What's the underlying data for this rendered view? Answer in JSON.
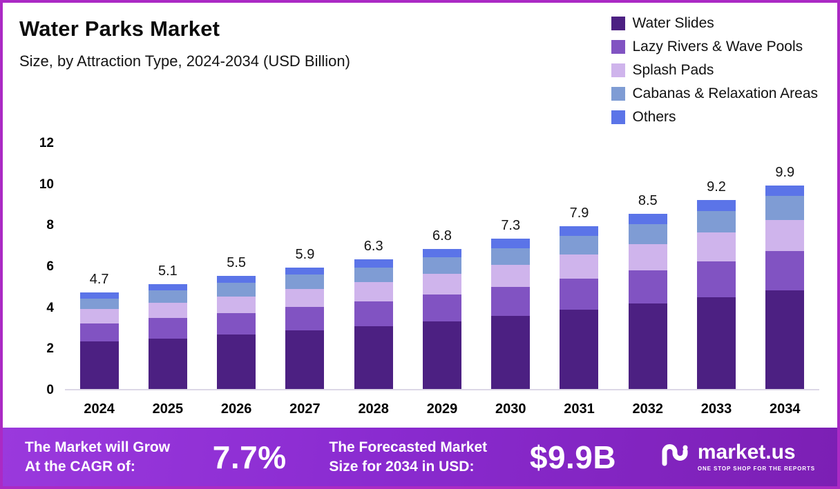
{
  "chart_data": {
    "type": "bar",
    "stacked": true,
    "title": "Water Parks Market",
    "subtitle": "Size, by Attraction Type, 2024-2034 (USD Billion)",
    "categories": [
      "2024",
      "2025",
      "2026",
      "2027",
      "2028",
      "2029",
      "2030",
      "2031",
      "2032",
      "2033",
      "2034"
    ],
    "totals": [
      4.7,
      5.1,
      5.5,
      5.9,
      6.3,
      6.8,
      7.3,
      7.9,
      8.5,
      9.2,
      9.9
    ],
    "series": [
      {
        "name": "Water Slides",
        "color": "#4c2082",
        "values": [
          2.3,
          2.45,
          2.65,
          2.85,
          3.05,
          3.3,
          3.55,
          3.85,
          4.15,
          4.45,
          4.8
        ]
      },
      {
        "name": "Lazy Rivers & Wave Pools",
        "color": "#8153c2",
        "values": [
          0.9,
          1.0,
          1.05,
          1.15,
          1.2,
          1.3,
          1.4,
          1.5,
          1.6,
          1.75,
          1.9
        ]
      },
      {
        "name": "Splash Pads",
        "color": "#cfb4ec",
        "values": [
          0.7,
          0.75,
          0.8,
          0.85,
          0.95,
          1.0,
          1.1,
          1.2,
          1.3,
          1.4,
          1.5
        ]
      },
      {
        "name": "Cabanas & Relaxation Areas",
        "color": "#7f9cd4",
        "values": [
          0.5,
          0.6,
          0.65,
          0.7,
          0.7,
          0.8,
          0.8,
          0.9,
          0.95,
          1.05,
          1.2
        ]
      },
      {
        "name": "Others",
        "color": "#5b74e8",
        "values": [
          0.3,
          0.3,
          0.35,
          0.35,
          0.4,
          0.4,
          0.45,
          0.45,
          0.5,
          0.55,
          0.5
        ]
      }
    ],
    "yticks": [
      0,
      2,
      4,
      6,
      8,
      10,
      12
    ],
    "ylim": [
      0,
      12
    ],
    "xlabel": "",
    "ylabel": "",
    "grid": false,
    "legend_position": "top-right"
  },
  "banner": {
    "cagr_label_line1": "The Market will Grow",
    "cagr_label_line2": "At the CAGR of:",
    "cagr_value": "7.7%",
    "forecast_label_line1": "The Forecasted Market",
    "forecast_label_line2": "Size for 2034 in USD:",
    "forecast_value": "$9.9B",
    "logo_text": "market.us",
    "logo_tagline": "ONE STOP SHOP FOR THE REPORTS"
  }
}
